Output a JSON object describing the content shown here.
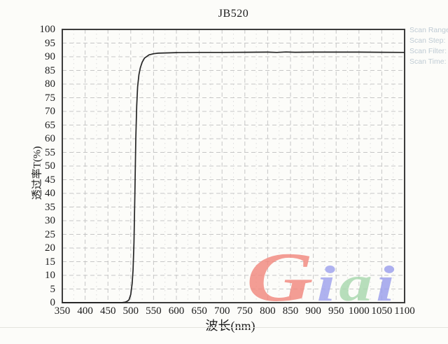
{
  "title": "JB520",
  "scan_info": {
    "lines": [
      "Scan Range:",
      "Scan Step:",
      "Scan Filter:",
      "Scan Time:"
    ],
    "color": "#bfcbd4"
  },
  "watermark": {
    "text": "Giai",
    "letters": [
      {
        "char": "G",
        "color": "#f2897f"
      },
      {
        "char": "i",
        "color": "#9fa2ee"
      },
      {
        "char": "a",
        "color": "#a8d8ae"
      },
      {
        "char": "i",
        "color": "#9b9fec"
      }
    ]
  },
  "colors": {
    "background": "#fcfcf9",
    "frame": "#3c3c3c",
    "grid_major": "#c6c6c6",
    "grid_minor": "#dddddd",
    "curve": "#262626",
    "text": "#1c1c1c"
  },
  "chart_data": {
    "type": "line",
    "title": "JB520",
    "xlabel": "波长(nm)",
    "ylabel": "透过率T(%)",
    "xlim": [
      350,
      1100
    ],
    "ylim": [
      0,
      100
    ],
    "x_ticks": [
      350,
      400,
      450,
      500,
      550,
      600,
      650,
      700,
      750,
      800,
      850,
      900,
      950,
      1000,
      1050,
      1100
    ],
    "y_ticks": [
      0,
      5,
      10,
      15,
      20,
      25,
      30,
      35,
      40,
      45,
      50,
      55,
      60,
      65,
      70,
      75,
      80,
      85,
      90,
      95,
      100
    ],
    "grid": {
      "style": "dashed",
      "major_x_step_nm": 50,
      "minor_x_step_nm": 25,
      "major_y_step_pct": 5
    },
    "legend": "none",
    "series": [
      {
        "name": "JB520 transmittance",
        "points": [
          [
            350,
            0
          ],
          [
            400,
            0
          ],
          [
            450,
            0
          ],
          [
            480,
            0
          ],
          [
            488,
            0.2
          ],
          [
            492,
            0.5
          ],
          [
            496,
            1
          ],
          [
            500,
            3
          ],
          [
            503,
            7
          ],
          [
            505,
            12
          ],
          [
            507,
            22
          ],
          [
            509,
            40
          ],
          [
            511,
            60
          ],
          [
            513,
            72
          ],
          [
            515,
            79
          ],
          [
            518,
            83.5
          ],
          [
            521,
            86
          ],
          [
            525,
            88
          ],
          [
            530,
            89.5
          ],
          [
            540,
            90.7
          ],
          [
            550,
            91.1
          ],
          [
            560,
            91.3
          ],
          [
            580,
            91.4
          ],
          [
            600,
            91.5
          ],
          [
            650,
            91.6
          ],
          [
            700,
            91.6
          ],
          [
            750,
            91.65
          ],
          [
            800,
            91.7
          ],
          [
            820,
            91.6
          ],
          [
            840,
            91.75
          ],
          [
            860,
            91.65
          ],
          [
            900,
            91.7
          ],
          [
            950,
            91.7
          ],
          [
            1000,
            91.7
          ],
          [
            1050,
            91.65
          ],
          [
            1100,
            91.6
          ]
        ]
      }
    ]
  }
}
